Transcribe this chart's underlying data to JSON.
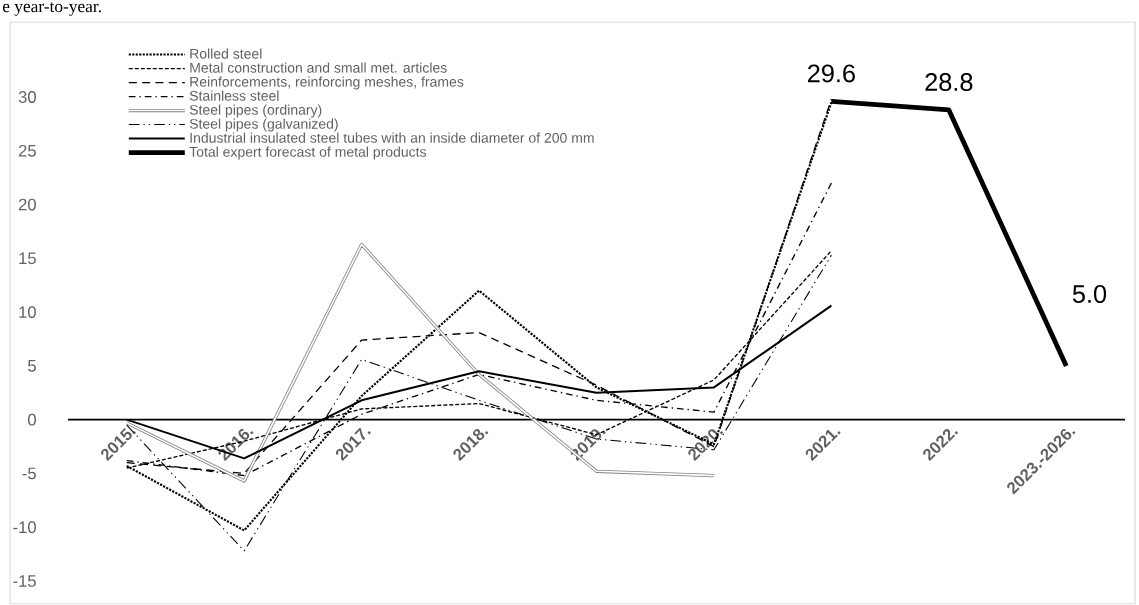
{
  "chart_data": {
    "type": "line",
    "annotations": [
      "e year-to-year."
    ],
    "categories": [
      "2015.",
      "2016.",
      "2017.",
      "2018.",
      "2019.",
      "2020.",
      "2021.",
      "2022.",
      "2023.-2026."
    ],
    "ylim": [
      -15,
      30
    ],
    "yticks": [
      -15,
      -10,
      -5,
      0,
      5,
      10,
      15,
      20,
      25,
      30
    ],
    "legend": "top left",
    "marker": "none",
    "grid": false,
    "series": [
      {
        "name": "Rolled steel",
        "color": "#000000",
        "line_style": "dotted",
        "values": [
          -4.3,
          -10.3,
          2.2,
          12.0,
          3.0,
          -2.3,
          29.5,
          null,
          null
        ]
      },
      {
        "name": "Metal construction and small met. articles",
        "color": "#000000",
        "line_style": "densely dashed",
        "values": [
          -4.5,
          -2.0,
          1.0,
          1.5,
          -1.4,
          3.7,
          15.7,
          null,
          null
        ]
      },
      {
        "name": "Reinforcements, reinforcing meshes, frames",
        "color": "#000000",
        "line_style": "dashed",
        "values": [
          -4.0,
          -5.0,
          7.4,
          8.1,
          3.2,
          -2.5,
          29.8,
          null,
          null
        ]
      },
      {
        "name": "Stainless steel",
        "color": "#000000",
        "line_style": "dashdotted",
        "values": [
          -3.8,
          -5.2,
          0.5,
          4.2,
          1.8,
          0.7,
          22.0,
          null,
          null
        ]
      },
      {
        "name": "Steel pipes (ordinary)",
        "color": "#808080",
        "line_style": "solid",
        "values": [
          -0.3,
          -5.7,
          16.3,
          4.2,
          -4.8,
          -5.2,
          null,
          null,
          null
        ]
      },
      {
        "name": "Steel pipes (galvanized)",
        "color": "#000000",
        "line_style": "dashdotdotted",
        "values": [
          -0.5,
          -12.2,
          5.6,
          1.8,
          -1.8,
          -2.8,
          15.3,
          null,
          null
        ]
      },
      {
        "name": "Industrial insulated steel tubes with an inside diameter of 200 mm",
        "color": "#000000",
        "line_style": "solid",
        "values": [
          0.0,
          -3.6,
          1.8,
          4.5,
          2.5,
          3.0,
          10.6,
          null,
          null
        ]
      },
      {
        "name": "Total expert forecast of metal products",
        "color": "#000000",
        "line_style": "solid",
        "values": [
          null,
          null,
          null,
          null,
          null,
          null,
          29.6,
          28.8,
          5.0
        ],
        "value_labels": [
          null,
          null,
          null,
          null,
          null,
          null,
          "29.6",
          "28.8",
          "5.0"
        ]
      }
    ]
  }
}
